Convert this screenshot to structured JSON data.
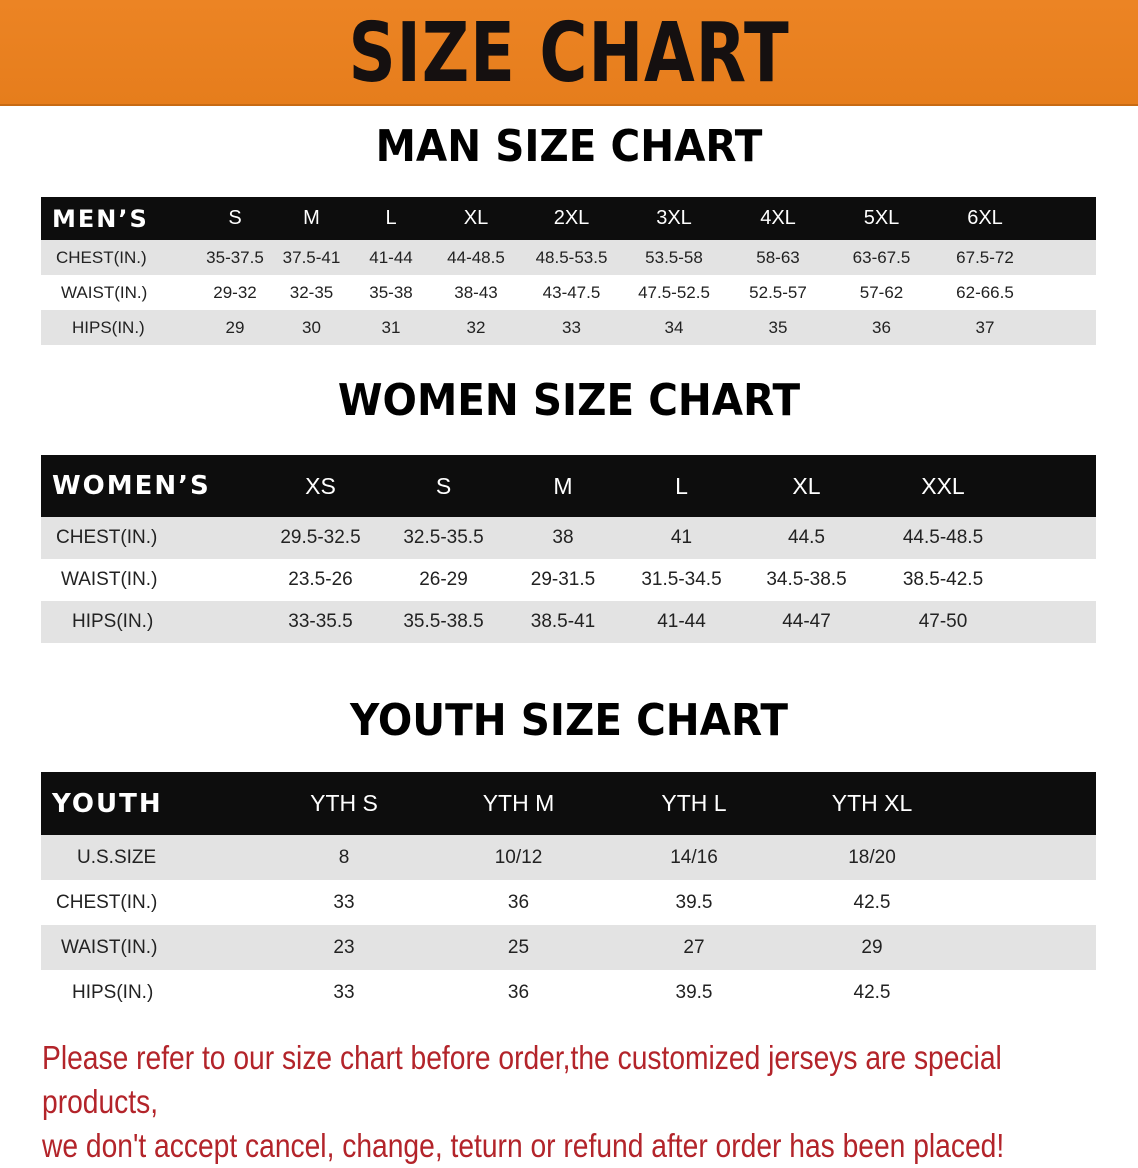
{
  "banner_title": "SIZE CHART",
  "colors": {
    "banner": "#e8801f",
    "header_row": "#0d0d0d",
    "stripe": "#e3e3e3",
    "note": "#b3242a"
  },
  "men": {
    "title": "MAN SIZE CHART",
    "header": "MEN’S",
    "sizes": [
      "S",
      "M",
      "L",
      "XL",
      "2XL",
      "3XL",
      "4XL",
      "5XL",
      "6XL"
    ],
    "rows": [
      {
        "label": "CHEST(IN.)",
        "values": [
          "35-37.5",
          "37.5-41",
          "41-44",
          "44-48.5",
          "48.5-53.5",
          "53.5-58",
          "58-63",
          "63-67.5",
          "67.5-72"
        ]
      },
      {
        "label": "WAIST(IN.)",
        "values": [
          "29-32",
          "32-35",
          "35-38",
          "38-43",
          "43-47.5",
          "47.5-52.5",
          "52.5-57",
          "57-62",
          "62-66.5"
        ]
      },
      {
        "label": "HIPS(IN.)",
        "values": [
          "29",
          "30",
          "31",
          "32",
          "33",
          "34",
          "35",
          "36",
          "37"
        ]
      }
    ]
  },
  "women": {
    "title": "WOMEN SIZE CHART",
    "header": "WOMEN’S",
    "sizes": [
      "XS",
      "S",
      "M",
      "L",
      "XL",
      "XXL"
    ],
    "rows": [
      {
        "label": "CHEST(IN.)",
        "values": [
          "29.5-32.5",
          "32.5-35.5",
          "38",
          "41",
          "44.5",
          "44.5-48.5"
        ]
      },
      {
        "label": "WAIST(IN.)",
        "values": [
          "23.5-26",
          "26-29",
          "29-31.5",
          "31.5-34.5",
          "34.5-38.5",
          "38.5-42.5"
        ]
      },
      {
        "label": "HIPS(IN.)",
        "values": [
          "33-35.5",
          "35.5-38.5",
          "38.5-41",
          "41-44",
          "44-47",
          "47-50"
        ]
      }
    ]
  },
  "youth": {
    "title": "YOUTH SIZE CHART",
    "header": "YOUTH",
    "sizes": [
      "YTH S",
      "YTH M",
      "YTH L",
      "YTH XL"
    ],
    "rows": [
      {
        "label": "U.S.SIZE",
        "values": [
          "8",
          "10/12",
          "14/16",
          "18/20"
        ]
      },
      {
        "label": "CHEST(IN.)",
        "values": [
          "33",
          "36",
          "39.5",
          "42.5"
        ]
      },
      {
        "label": "WAIST(IN.)",
        "values": [
          "23",
          "25",
          "27",
          "29"
        ]
      },
      {
        "label": "HIPS(IN.)",
        "values": [
          "33",
          "36",
          "39.5",
          "42.5"
        ]
      }
    ]
  },
  "note": {
    "line1": "Please refer to our size chart before order,the customized jerseys are special products,",
    "line2": "we don't accept cancel, change, teturn or refund after order has been placed!"
  }
}
